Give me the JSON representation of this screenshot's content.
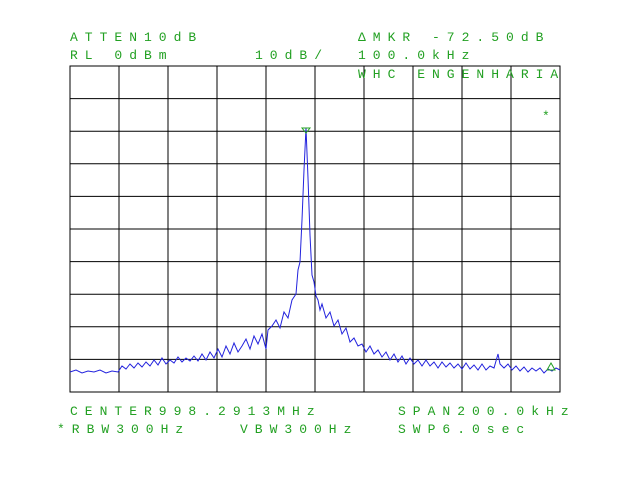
{
  "header": {
    "atten": "ATTEN10dB",
    "ref_level": "RL 0dBm",
    "scale": "10dB/",
    "marker": "ΔMKR -72.50dB",
    "marker_freq": "100.0kHz",
    "owner": "WHC ENGENHARIA",
    "flag": "*"
  },
  "footer": {
    "center": "CENTER998.2913MHz",
    "span": "SPAN200.0kHz",
    "rbw": "*RBW300Hz",
    "vbw": "VBW300Hz",
    "sweep": "SWP6.0sec"
  }
}
